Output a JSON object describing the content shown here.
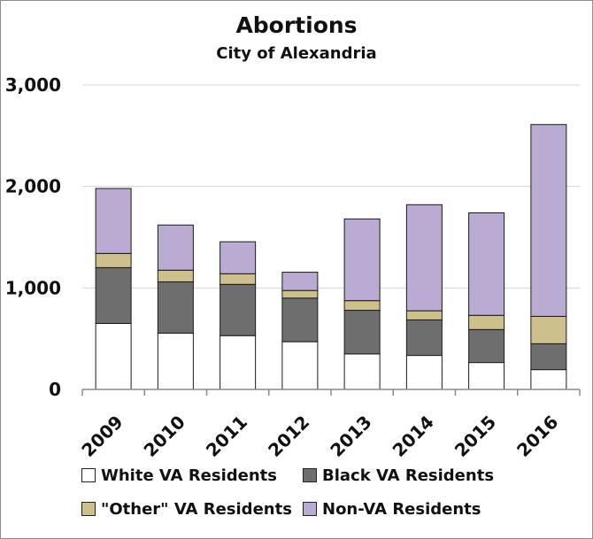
{
  "chart_data": {
    "type": "bar",
    "stacked": true,
    "title": "Abortions",
    "subtitle": "City of Alexandria",
    "categories": [
      "2009",
      "2010",
      "2011",
      "2012",
      "2013",
      "2014",
      "2015",
      "2016"
    ],
    "series": [
      {
        "name": "White VA Residents",
        "color": "#ffffff",
        "values": [
          650,
          555,
          530,
          470,
          350,
          335,
          265,
          195
        ]
      },
      {
        "name": "Black VA Residents",
        "color": "#6e6e6e",
        "values": [
          550,
          505,
          505,
          430,
          430,
          350,
          325,
          255
        ]
      },
      {
        "name": "\"Other\" VA Residents",
        "color": "#cdc08d",
        "values": [
          140,
          115,
          105,
          75,
          95,
          90,
          140,
          270
        ]
      },
      {
        "name": "Non-VA Residents",
        "color": "#b9abd1",
        "values": [
          640,
          445,
          315,
          180,
          805,
          1045,
          1010,
          1890
        ]
      }
    ],
    "ylim": [
      0,
      3000
    ],
    "yticks": [
      0,
      1000,
      2000,
      3000
    ],
    "ytick_labels": [
      "0",
      "1,000",
      "2,000",
      "3,000"
    ],
    "grid": true,
    "legend_position": "bottom",
    "xlabel": "",
    "ylabel": ""
  }
}
